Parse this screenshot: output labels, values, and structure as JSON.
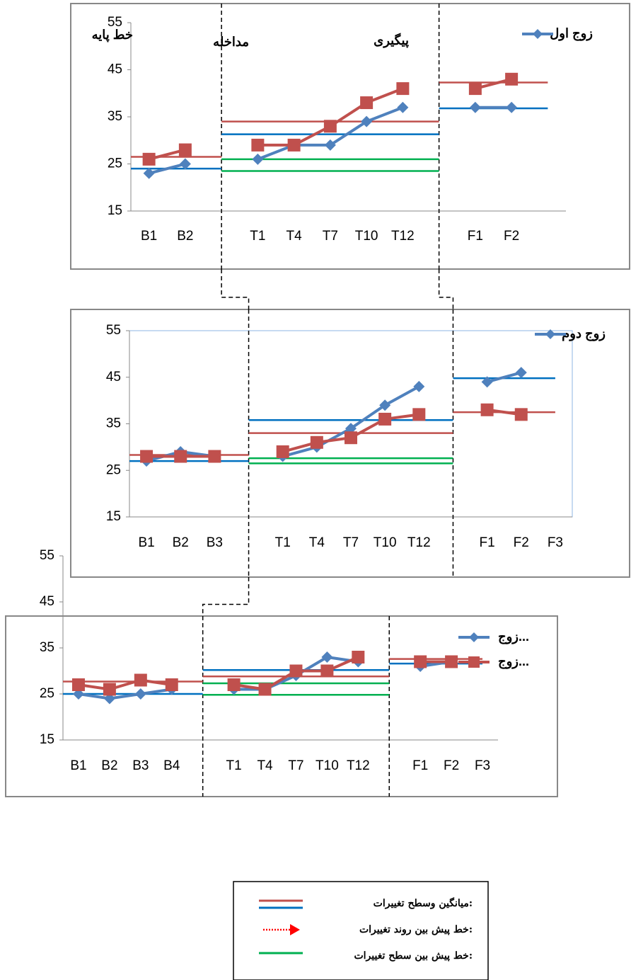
{
  "chart_data": [
    {
      "type": "line",
      "annotations": [
        "خط پایه",
        "مداخله",
        "پیگیری"
      ],
      "categories": [
        "B1",
        "B2",
        null,
        "T1",
        "T4",
        "T7",
        "T10",
        "T12",
        null,
        "F1",
        "F2",
        null
      ],
      "series": [
        {
          "name": "زوج اول",
          "color": "#4f81bd",
          "marker": "diamond",
          "values": [
            23,
            25,
            null,
            26,
            29,
            29,
            34,
            37,
            null,
            37,
            37,
            null
          ]
        },
        {
          "color": "#c0504d",
          "marker": "square",
          "values": [
            26,
            28,
            null,
            29,
            29,
            33,
            38,
            41,
            null,
            41,
            43,
            null
          ]
        }
      ],
      "levels": [
        {
          "color": "#c0504d",
          "values": [
            26.5,
            34,
            42.3
          ]
        },
        {
          "color": "#0070c0",
          "values": [
            24,
            31.3,
            36.8
          ]
        },
        {
          "color": "#00b050",
          "values": [
            null,
            26,
            null
          ]
        },
        {
          "color": "#00b050",
          "values": [
            null,
            23.5,
            null
          ]
        }
      ],
      "ylim": [
        15,
        55
      ],
      "yticks": [
        15,
        25,
        35,
        45,
        55
      ],
      "grid": false,
      "legend": "top-right"
    },
    {
      "type": "line",
      "categories": [
        "B1",
        "B2",
        "B3",
        null,
        "T1",
        "T4",
        "T7",
        "T10",
        "T12",
        null,
        "F1",
        "F2",
        "F3"
      ],
      "series": [
        {
          "name": "زوج دوم",
          "color": "#4f81bd",
          "marker": "diamond",
          "values": [
            27,
            29,
            28,
            null,
            28,
            30,
            34,
            39,
            43,
            null,
            44,
            46,
            null
          ]
        },
        {
          "color": "#c0504d",
          "marker": "square",
          "values": [
            28,
            28,
            28,
            null,
            29,
            31,
            32,
            36,
            37,
            null,
            38,
            37,
            null
          ]
        }
      ],
      "levels": [
        {
          "color": "#c0504d",
          "values": [
            28.3,
            33,
            37.5
          ]
        },
        {
          "color": "#0070c0",
          "values": [
            27,
            35.8,
            44.8
          ]
        },
        {
          "color": "#00b050",
          "values": [
            null,
            27.6,
            null
          ]
        },
        {
          "color": "#00b050",
          "values": [
            null,
            26.5,
            null
          ]
        }
      ],
      "ylim": [
        15,
        55
      ],
      "yticks": [
        15,
        25,
        35,
        45,
        55
      ],
      "grid": false,
      "legend": "top-right"
    },
    {
      "type": "line",
      "categories": [
        "B1",
        "B2",
        "B3",
        "B4",
        null,
        "T1",
        "T4",
        "T7",
        "T10",
        "T12",
        null,
        "F1",
        "F2",
        "F3"
      ],
      "series": [
        {
          "name": "زوج...",
          "color": "#4f81bd",
          "marker": "diamond",
          "values": [
            25,
            24,
            25,
            26,
            null,
            26,
            26,
            29,
            33,
            32,
            null,
            31,
            32,
            null
          ]
        },
        {
          "name": "زوج...",
          "color": "#c0504d",
          "marker": "square",
          "values": [
            27,
            26,
            28,
            27,
            null,
            27,
            26,
            30,
            30,
            33,
            null,
            32,
            32,
            null
          ]
        }
      ],
      "levels": [
        {
          "color": "#c0504d",
          "values": [
            27.7,
            28.8,
            32.6
          ]
        },
        {
          "color": "#0070c0",
          "values": [
            25,
            30.2,
            31.6
          ]
        },
        {
          "color": "#00b050",
          "values": [
            null,
            27.3,
            null
          ]
        },
        {
          "color": "#00b050",
          "values": [
            null,
            24.8,
            null
          ]
        }
      ],
      "ylim": [
        15,
        55
      ],
      "yticks": [
        15,
        25,
        35,
        45,
        55
      ],
      "grid": false,
      "legend": "top-right"
    }
  ],
  "legend_box": {
    "items": [
      {
        "label": "میانگین وسطح تغییرات:",
        "colors": [
          "#c0504d",
          "#0070c0"
        ],
        "style": "solid"
      },
      {
        "label": "خط پیش بین روند تغییرات:",
        "colors": [
          "#ff0000"
        ],
        "style": "dotted-arrow"
      },
      {
        "label": "خط پیش بین سطح تغییرات:",
        "colors": [
          "#00b050"
        ],
        "style": "solid"
      }
    ]
  }
}
